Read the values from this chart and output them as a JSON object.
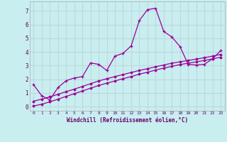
{
  "title": "",
  "xlabel": "Windchill (Refroidissement éolien,°C)",
  "ylabel": "",
  "background_color": "#c8eef0",
  "grid_color": "#c0d8dc",
  "line_color": "#990099",
  "x_data": [
    0,
    1,
    2,
    3,
    4,
    5,
    6,
    7,
    8,
    9,
    10,
    11,
    12,
    13,
    14,
    15,
    16,
    17,
    18,
    19,
    20,
    21,
    22,
    23
  ],
  "y_main": [
    1.6,
    0.8,
    0.5,
    1.4,
    1.9,
    2.1,
    2.2,
    3.2,
    3.1,
    2.65,
    3.7,
    3.9,
    4.45,
    6.3,
    7.1,
    7.2,
    5.5,
    5.1,
    4.4,
    3.1,
    3.05,
    3.1,
    3.5,
    4.1
  ],
  "y_line1": [
    0.05,
    0.18,
    0.35,
    0.55,
    0.75,
    0.95,
    1.15,
    1.35,
    1.55,
    1.72,
    1.88,
    2.05,
    2.2,
    2.38,
    2.52,
    2.68,
    2.82,
    2.95,
    3.08,
    3.18,
    3.28,
    3.38,
    3.5,
    3.62
  ],
  "y_line2": [
    0.4,
    0.55,
    0.72,
    0.9,
    1.1,
    1.28,
    1.48,
    1.68,
    1.88,
    2.05,
    2.2,
    2.35,
    2.5,
    2.65,
    2.78,
    2.92,
    3.05,
    3.18,
    3.28,
    3.38,
    3.48,
    3.58,
    3.7,
    3.82
  ],
  "xlim": [
    -0.5,
    23.5
  ],
  "ylim": [
    -0.3,
    7.7
  ],
  "yticks": [
    0,
    1,
    2,
    3,
    4,
    5,
    6,
    7
  ],
  "xticks": [
    0,
    1,
    2,
    3,
    4,
    5,
    6,
    7,
    8,
    9,
    10,
    11,
    12,
    13,
    14,
    15,
    16,
    17,
    18,
    19,
    20,
    21,
    22,
    23
  ]
}
